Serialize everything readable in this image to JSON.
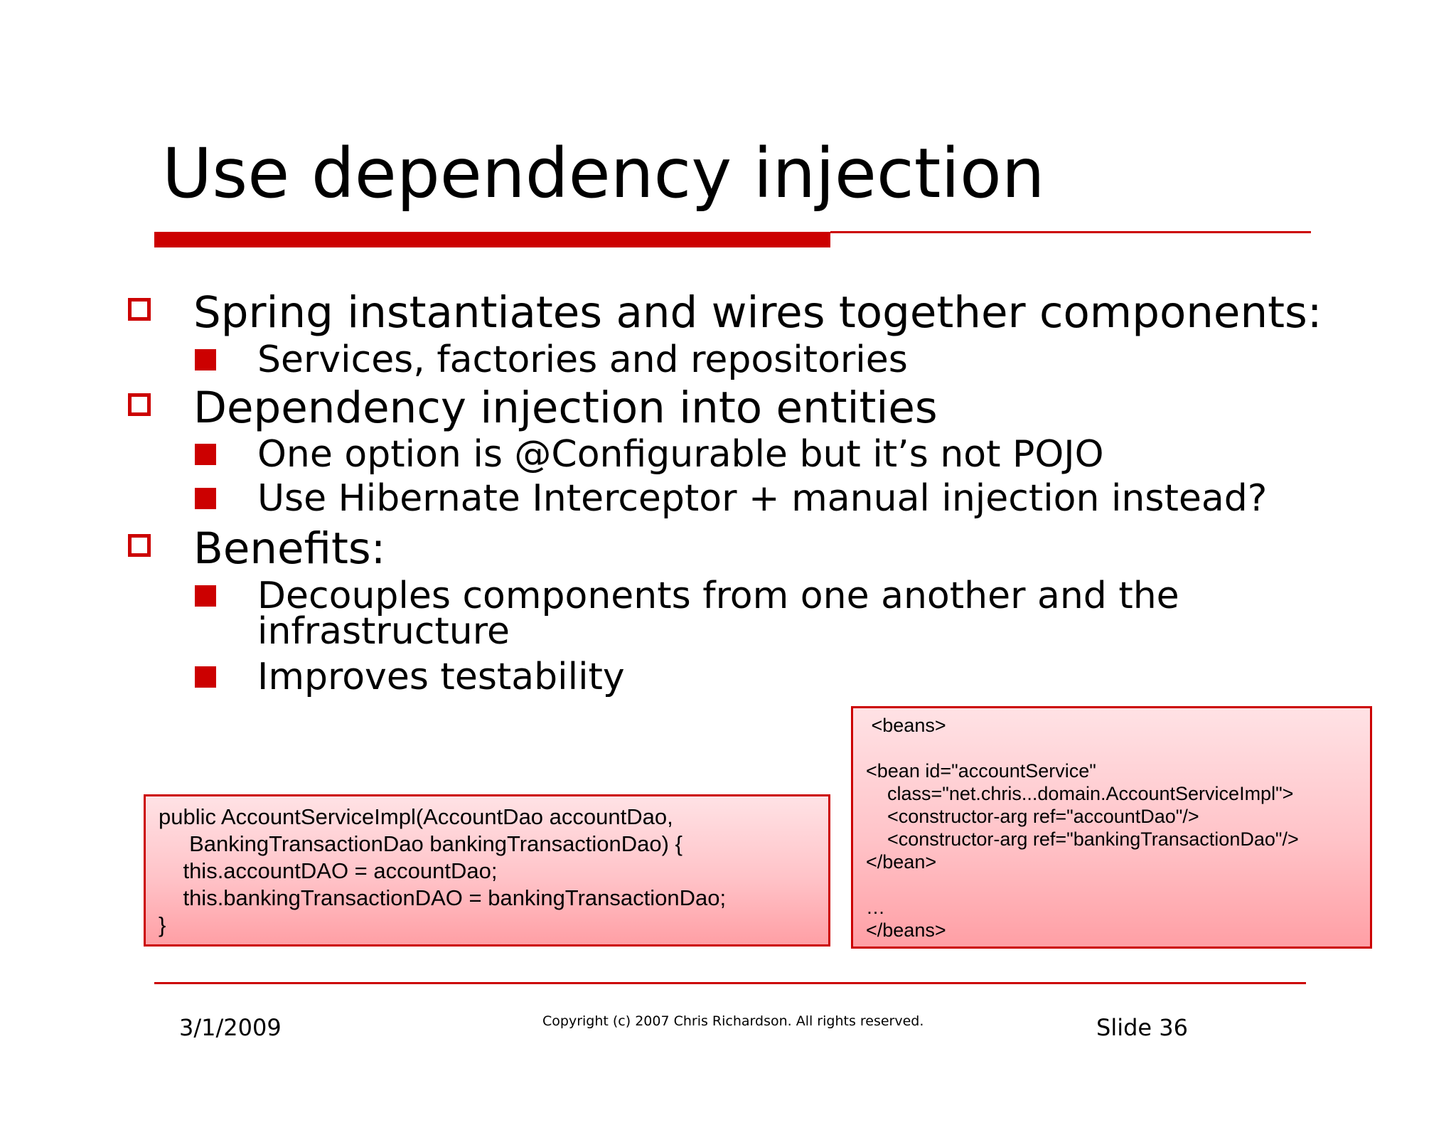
{
  "slide": {
    "title": "Use dependency injection",
    "bullets": [
      {
        "text": "Spring instantiates and wires together components:",
        "sub": [
          "Services, factories and repositories"
        ]
      },
      {
        "text": "Dependency injection into entities",
        "sub": [
          "One option is @Configurable but it’s not POJO",
          "Use Hibernate Interceptor + manual injection instead?"
        ]
      },
      {
        "text": "Benefits:",
        "sub": [
          "Decouples components from one another and the infrastructure",
          "Improves testability"
        ]
      }
    ],
    "java_code": [
      "public AccountServiceImpl(AccountDao accountDao,",
      "     BankingTransactionDao bankingTransactionDao) {",
      "    this.accountDAO = accountDao;",
      "    this.bankingTransactionDAO = bankingTransactionDao;",
      "}"
    ],
    "xml_code": [
      " <beans>",
      "",
      "<bean id=\"accountService\"",
      "    class=\"net.chris...domain.AccountServiceImpl\">",
      "    <constructor-arg ref=\"accountDao\"/>",
      "    <constructor-arg ref=\"bankingTransactionDao\"/>",
      "</bean>",
      "",
      "…",
      "</beans>"
    ],
    "footer": {
      "date": "3/1/2009",
      "copyright": "Copyright (c)  2007 Chris Richardson. All rights reserved.",
      "slide_number": "Slide 36"
    },
    "colors": {
      "accent": "#cc0000",
      "code_bg_top": "#ffe2e5",
      "code_bg_bottom": "#ff9fa5"
    }
  }
}
